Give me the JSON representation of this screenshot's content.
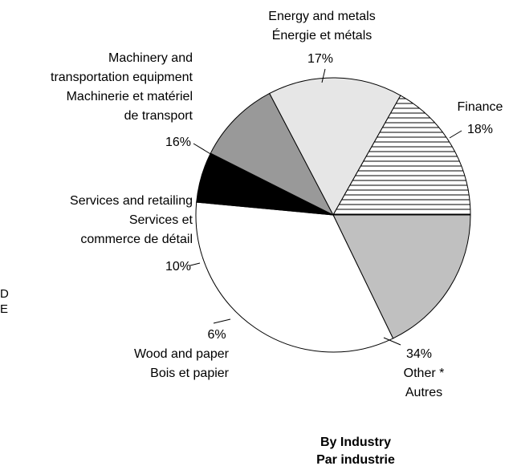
{
  "chart_data": {
    "type": "pie",
    "title": [
      "By Industry",
      "Par industrie"
    ],
    "slices": [
      {
        "label": [
          "Finance"
        ],
        "percent_label": "18%",
        "value": 18,
        "fill": "#c0c0c0"
      },
      {
        "label": [
          "Other *",
          "Autres"
        ],
        "percent_label": "34%",
        "value": 34,
        "fill": "#ffffff"
      },
      {
        "label": [
          "Wood and paper",
          "Bois et papier"
        ],
        "percent_label": "6%",
        "value": 6,
        "fill": "#000000"
      },
      {
        "label": [
          "Services and retailing",
          "Services et",
          "commerce de détail"
        ],
        "percent_label": "10%",
        "value": 10,
        "fill": "#999999"
      },
      {
        "label": [
          "Machinery and",
          "transportation equipment",
          "Machinerie et matériel",
          "de transport"
        ],
        "percent_label": "16%",
        "value": 16,
        "fill": "#e6e6e6"
      },
      {
        "label": [
          "Energy and metals",
          "Énergie et métals"
        ],
        "percent_label": "17%",
        "value": 17,
        "fill": "horizontal-stripes"
      }
    ],
    "edge_fragment": [
      "D",
      "E"
    ]
  }
}
